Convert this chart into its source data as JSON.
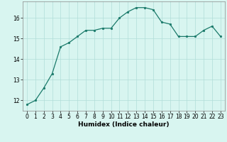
{
  "x": [
    0,
    1,
    2,
    3,
    4,
    5,
    6,
    7,
    8,
    9,
    10,
    11,
    12,
    13,
    14,
    15,
    16,
    17,
    18,
    19,
    20,
    21,
    22,
    23
  ],
  "y": [
    11.8,
    12.0,
    12.6,
    13.3,
    14.6,
    14.8,
    15.1,
    15.4,
    15.4,
    15.5,
    15.5,
    16.0,
    16.3,
    16.5,
    16.5,
    16.4,
    15.8,
    15.7,
    15.1,
    15.1,
    15.1,
    15.4,
    15.6,
    15.1
  ],
  "line_color": "#1a7a6a",
  "marker": "o",
  "marker_size": 1.8,
  "bg_color": "#d8f5f0",
  "grid_color": "#b0ddd8",
  "xlabel": "Humidex (Indice chaleur)",
  "xlabel_fontsize": 6.5,
  "tick_fontsize": 5.5,
  "xlim": [
    -0.5,
    23.5
  ],
  "ylim": [
    11.5,
    16.8
  ],
  "yticks": [
    12,
    13,
    14,
    15,
    16
  ],
  "xticks": [
    0,
    1,
    2,
    3,
    4,
    5,
    6,
    7,
    8,
    9,
    10,
    11,
    12,
    13,
    14,
    15,
    16,
    17,
    18,
    19,
    20,
    21,
    22,
    23
  ]
}
